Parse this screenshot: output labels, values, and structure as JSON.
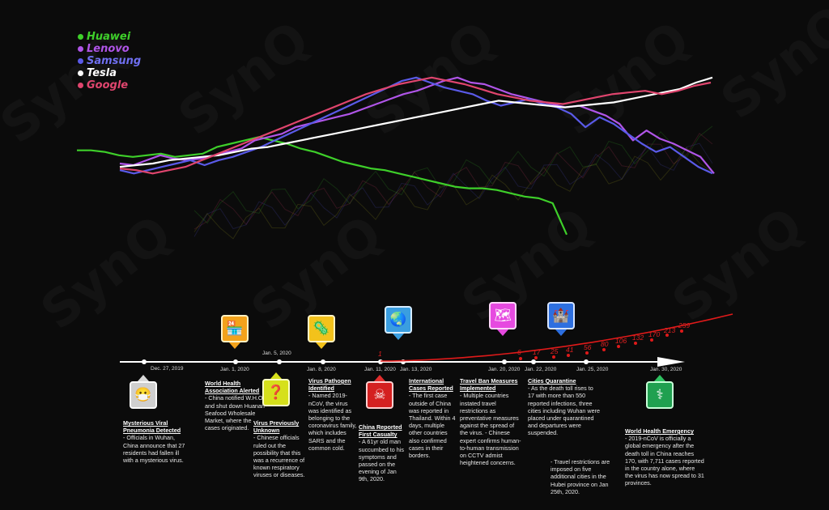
{
  "watermark": "SynQ",
  "chart_data": {
    "type": "line",
    "series": [
      {
        "name": "Huawei",
        "color": "#3ecf2a",
        "values": [
          0.56,
          0.56,
          0.55,
          0.53,
          0.52,
          0.53,
          0.54,
          0.52,
          0.53,
          0.54,
          0.58,
          0.6,
          0.62,
          0.64,
          0.62,
          0.6,
          0.57,
          0.55,
          0.52,
          0.49,
          0.47,
          0.45,
          0.44,
          0.42,
          0.4,
          0.38,
          0.36,
          0.34,
          0.33,
          0.33,
          0.32,
          0.3,
          0.28,
          0.27,
          0.24,
          0.05
        ]
      },
      {
        "name": "Lenovo",
        "color": "#b055e8",
        "values": [
          0.48,
          0.47,
          0.5,
          0.53,
          0.51,
          0.5,
          0.51,
          0.53,
          0.55,
          0.57,
          0.62,
          0.64,
          0.66,
          0.7,
          0.72,
          0.74,
          0.76,
          0.78,
          0.81,
          0.84,
          0.87,
          0.9,
          0.92,
          0.95,
          0.98,
          1.0,
          0.97,
          0.96,
          0.93,
          0.9,
          0.88,
          0.86,
          0.84,
          0.82,
          0.83,
          0.8,
          0.77,
          0.72,
          0.62,
          0.68,
          0.63,
          0.6,
          0.56,
          0.52,
          0.42
        ]
      },
      {
        "name": "Samsung",
        "color": "#5a5ae8",
        "values": [
          0.44,
          0.42,
          0.44,
          0.46,
          0.48,
          0.5,
          0.47,
          0.5,
          0.52,
          0.55,
          0.58,
          0.62,
          0.66,
          0.7,
          0.74,
          0.78,
          0.82,
          0.86,
          0.9,
          0.94,
          0.98,
          1.0,
          0.97,
          0.94,
          0.92,
          0.9,
          0.86,
          0.83,
          0.85,
          0.87,
          0.84,
          0.82,
          0.78,
          0.7,
          0.76,
          0.72,
          0.66,
          0.6,
          0.55,
          0.58,
          0.52,
          0.46,
          0.42
        ]
      },
      {
        "name": "Tesla",
        "color": "#ffffff",
        "values": [
          0.46,
          0.47,
          0.48,
          0.5,
          0.51,
          0.52,
          0.53,
          0.55,
          0.57,
          0.58,
          0.6,
          0.62,
          0.64,
          0.66,
          0.68,
          0.7,
          0.72,
          0.74,
          0.76,
          0.78,
          0.8,
          0.82,
          0.84,
          0.86,
          0.85,
          0.84,
          0.83,
          0.82,
          0.83,
          0.84,
          0.85,
          0.87,
          0.89,
          0.91,
          0.93,
          0.97,
          1.0
        ]
      },
      {
        "name": "Google",
        "color": "#e0456e",
        "values": [
          0.45,
          0.44,
          0.42,
          0.44,
          0.46,
          0.5,
          0.54,
          0.58,
          0.62,
          0.66,
          0.7,
          0.74,
          0.78,
          0.82,
          0.86,
          0.9,
          0.93,
          0.96,
          0.98,
          1.0,
          0.98,
          0.96,
          0.93,
          0.9,
          0.88,
          0.86,
          0.85,
          0.84,
          0.86,
          0.88,
          0.9,
          0.91,
          0.92,
          0.9,
          0.92,
          0.95,
          0.97
        ]
      }
    ],
    "case_counts": [
      "1",
      "6",
      "17",
      "25",
      "41",
      "56",
      "80",
      "106",
      "132",
      "170",
      "213",
      "259"
    ]
  },
  "timeline": {
    "dates": [
      "Dec. 27, 2019",
      "Jan. 1, 2020",
      "Jan. 5, 2020",
      "Jan. 8, 2020",
      "Jan. 11, 2020",
      "Jan. 13, 2020",
      "Jan. 20, 2020",
      "Jan. 22, 2020",
      "Jan. 25, 2020",
      "Jan. 30, 2020"
    ],
    "events": [
      {
        "title": "Mysterious Viral Pneumonia Detected",
        "body": "- Officials in Wuhan, China announce that 27 residents had fallen ill with a mysterious virus."
      },
      {
        "title": "World Health Association Alerted",
        "body": "- China notified W.H.O and shut down Huanan Seafood Wholesale Market, where the cases originated."
      },
      {
        "title": "Virus Previously Unknown",
        "body": "- Chinese officials ruled out the possibility that this was a recurrence of known respiratory viruses or diseases."
      },
      {
        "title": "Virus Pathogen Identified",
        "body": "- Named 2019-nCoV, the virus was identified as belonging to the coronavirus family, which includes SARS and the common cold."
      },
      {
        "title": "China Reported First Casualty",
        "body": "- A 61yr old man succumbed to his symptoms and passed on the evening of Jan 9th, 2020."
      },
      {
        "title": "International Cases Reported",
        "body": "- The first case outside of China was reported in Thailand. Within 4 days, multiple other countries also confirmed cases in their borders."
      },
      {
        "title": "Travel Ban Measures Implemented",
        "body": "- Multiple countries instated travel restrictions as preventative measures against the spread of the virus. - Chinese expert confirms human-to-human transmission on CCTV admist heightened concerns."
      },
      {
        "title": "Cities Quarantine",
        "body": "- As the death toll rises to 17 with more than 550 reported infections, three cities including Wuhan were placed under quarantined and departures were suspended."
      },
      {
        "title": "",
        "body": "- Travel restrictions are imposed on five additional cities in the Hubei province on Jan 25th, 2020."
      },
      {
        "title": "World Health Emergency",
        "body": "- 2019-nCoV is officially a global emergency after the death toll in China reaches 170, with 7,711 cases reported in the country alone, where the virus has now spread to 31 provinces."
      }
    ]
  },
  "icons": [
    "person-mask-icon",
    "market-stall-icon",
    "question-mark-icon",
    "virus-icon",
    "skull-icon",
    "globe-plane-icon",
    "world-map-icon",
    "castle-lock-icon",
    "medical-star-icon"
  ]
}
